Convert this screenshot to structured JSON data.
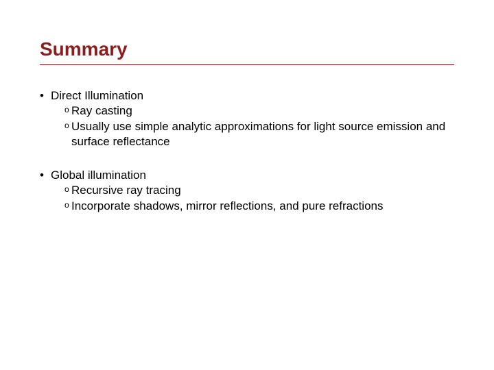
{
  "colors": {
    "title": "#8a1e1e",
    "rule": "#8a1e1e",
    "body": "#000000",
    "background": "#ffffff"
  },
  "typography": {
    "title_fontsize_pt": 21,
    "body_fontsize_pt": 13,
    "title_weight": "bold",
    "body_weight": "normal",
    "family": "Arial"
  },
  "slide": {
    "title": "Summary",
    "bullets": [
      {
        "label": "Direct Illumination",
        "sub": [
          "Ray casting",
          "Usually use simple analytic approximations for light source emission and surface reflectance"
        ]
      },
      {
        "label": "Global illumination",
        "sub": [
          "Recursive ray tracing",
          "Incorporate shadows, mirror reflections, and pure refractions"
        ]
      }
    ]
  }
}
